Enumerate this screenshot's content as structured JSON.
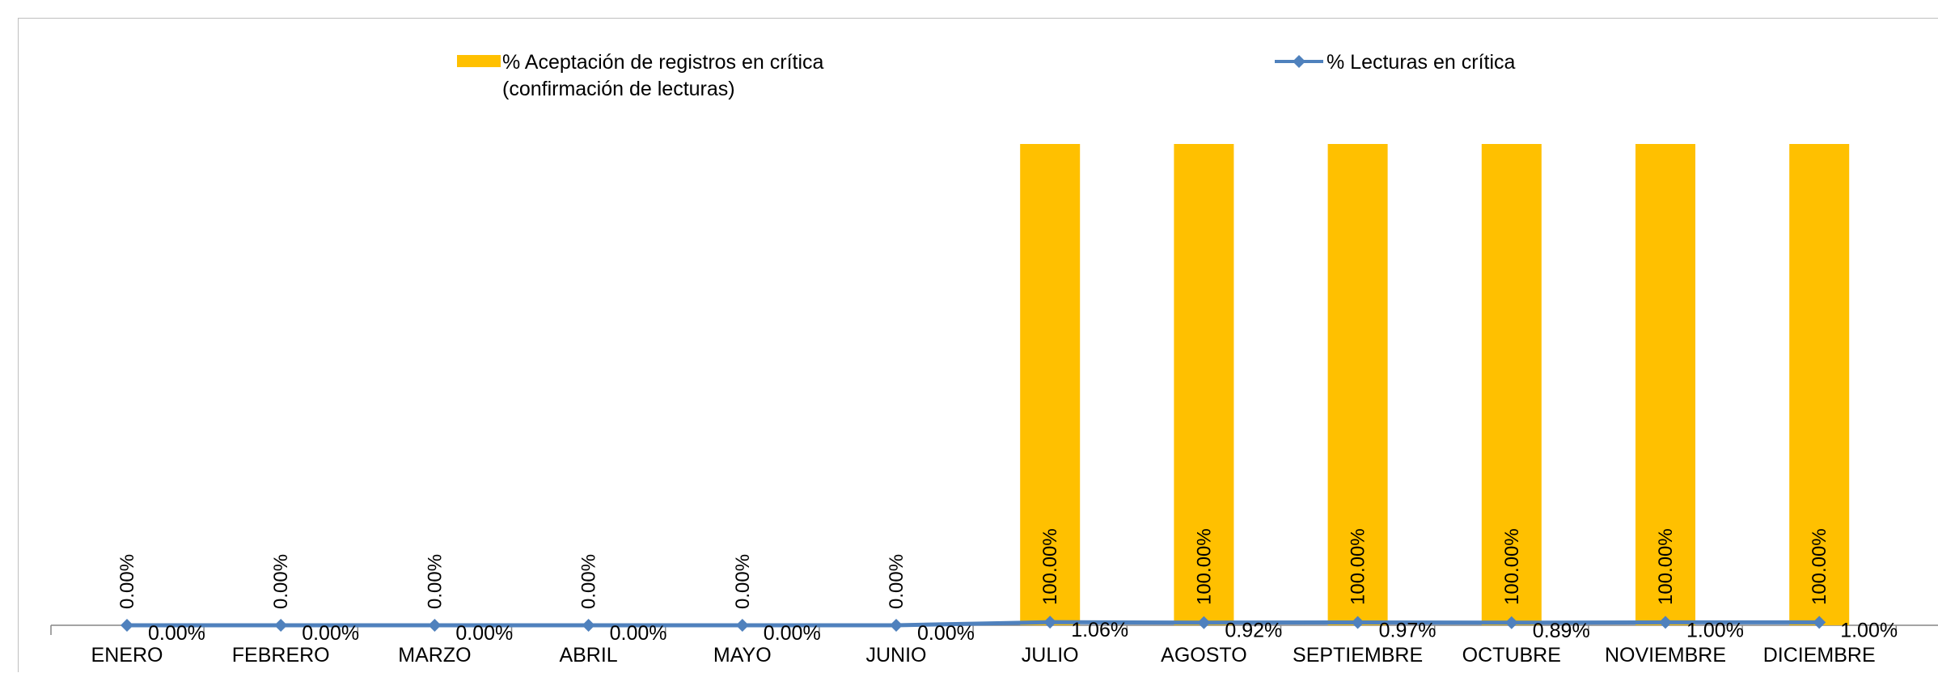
{
  "colors": {
    "bar": "#ffc000",
    "line": "#4f81bd",
    "axis": "#868686"
  },
  "legend": {
    "bar_label_line1": "% Aceptación de registros en crítica",
    "bar_label_line2": "(confirmación de lecturas)",
    "line_label": "% Lecturas en crítica"
  },
  "chart_data": {
    "type": "bar",
    "categories": [
      "ENERO",
      "FEBRERO",
      "MARZO",
      "ABRIL",
      "MAYO",
      "JUNIO",
      "JULIO",
      "AGOSTO",
      "SEPTIEMBRE",
      "OCTUBRE",
      "NOVIEMBRE",
      "DICIEMBRE"
    ],
    "series": [
      {
        "name": "% Aceptación de registros en crítica (confirmación de lecturas)",
        "type": "bar",
        "values": [
          0,
          0,
          0,
          0,
          0,
          0,
          100,
          100,
          100,
          100,
          100,
          100
        ],
        "labels": [
          "0.00%",
          "0.00%",
          "0.00%",
          "0.00%",
          "0.00%",
          "0.00%",
          "100.00%",
          "100.00%",
          "100.00%",
          "100.00%",
          "100.00%",
          "100.00%"
        ]
      },
      {
        "name": "% Lecturas en crítica",
        "type": "line",
        "values": [
          0,
          0,
          0,
          0,
          0,
          0,
          1.06,
          0.92,
          0.97,
          0.89,
          1.0,
          1.0
        ],
        "labels": [
          "0.00%",
          "0.00%",
          "0.00%",
          "0.00%",
          "0.00%",
          "0.00%",
          "1.06%",
          "0.92%",
          "0.97%",
          "0.89%",
          "1.00%",
          "1.00%"
        ]
      }
    ],
    "ylim": [
      0,
      100
    ],
    "grid": false,
    "legend_position": "top"
  }
}
